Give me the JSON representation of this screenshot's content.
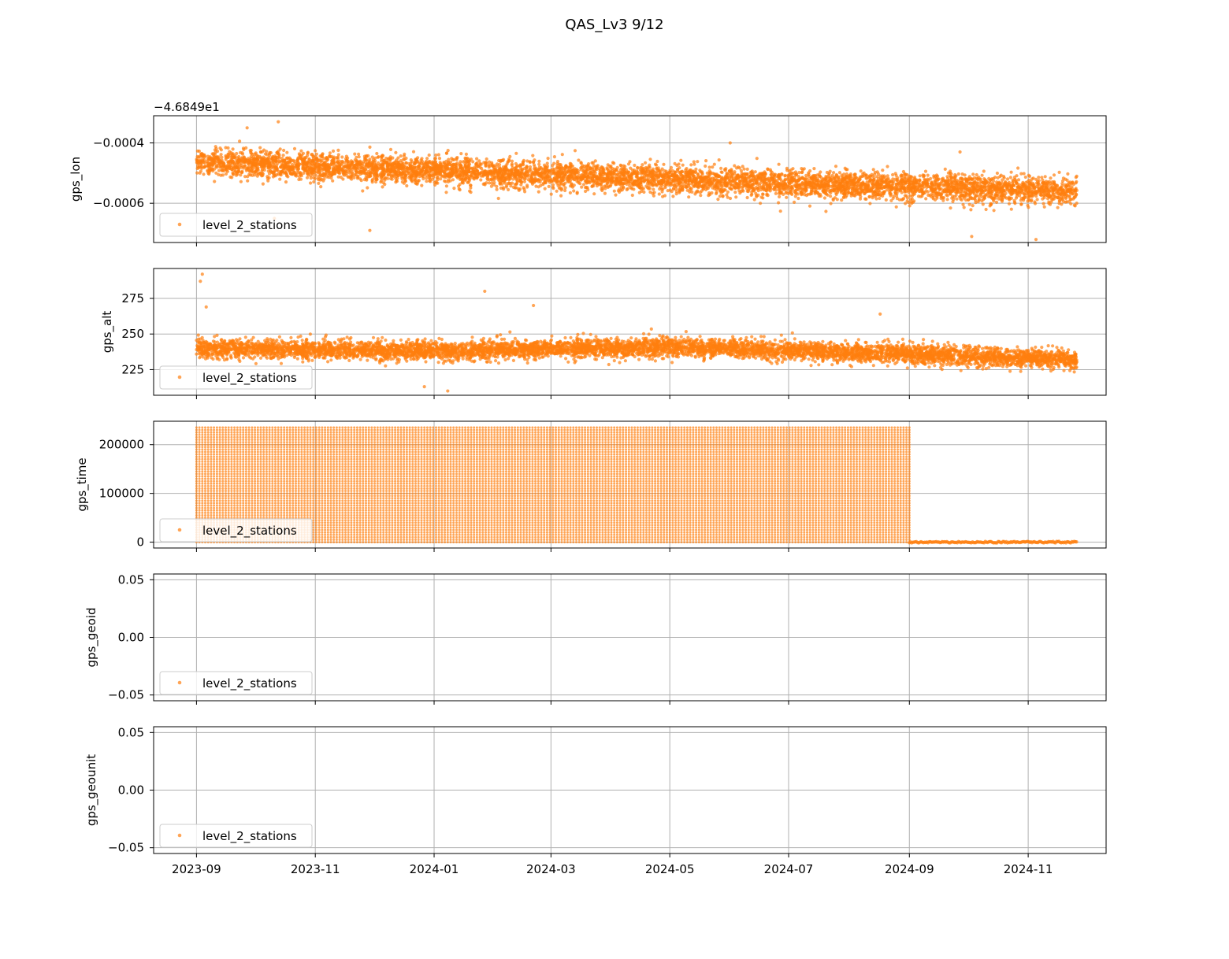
{
  "figure": {
    "title": "QAS_Lv3 9/12",
    "x_tick_labels": [
      "2023-09",
      "2023-11",
      "2024-01",
      "2024-03",
      "2024-05",
      "2024-07",
      "2024-09",
      "2024-11"
    ],
    "x_tick_dates": [
      "2023-09-01",
      "2023-11-01",
      "2024-01-01",
      "2024-03-01",
      "2024-05-01",
      "2024-07-01",
      "2024-09-01",
      "2024-11-01"
    ],
    "data_start": "2023-09-01",
    "data_end": "2024-11-26",
    "xlim": [
      "2023-08-10",
      "2024-12-11"
    ],
    "series_color": "#ff7f0e",
    "grid": true,
    "shared_x": true
  },
  "chart_data": [
    {
      "type": "scatter",
      "ylabel": "gps_lon",
      "offset_text": "−4.6849e1",
      "ylim": [
        -0.00073,
        -0.00031
      ],
      "y_ticks": [
        -0.0004,
        -0.0006
      ],
      "y_tick_labels": [
        "−0.0004",
        "−0.0006"
      ],
      "legend": {
        "label": "level_2_stations",
        "location": "lower left"
      },
      "series": [
        {
          "name": "level_2_stations",
          "trend": [
            [
              "2023-09-01",
              -0.000465
            ],
            [
              "2024-03-01",
              -0.000505
            ],
            [
              "2024-07-01",
              -0.000535
            ],
            [
              "2024-11-26",
              -0.00056
            ]
          ],
          "spread": 4e-05,
          "outliers": [
            [
              "2023-09-27",
              -0.00035
            ],
            [
              "2023-10-11",
              -0.00065
            ],
            [
              "2023-11-29",
              -0.00069
            ],
            [
              "2023-10-13",
              -0.00033
            ],
            [
              "2024-06-01",
              -0.0004
            ],
            [
              "2024-10-03",
              -0.00071
            ],
            [
              "2024-11-05",
              -0.00072
            ],
            [
              "2024-09-27",
              -0.00043
            ]
          ]
        }
      ]
    },
    {
      "type": "scatter",
      "ylabel": "gps_alt",
      "ylim": [
        207,
        296
      ],
      "y_ticks": [
        225,
        250,
        275
      ],
      "y_tick_labels": [
        "225",
        "250",
        "275"
      ],
      "legend": {
        "label": "level_2_stations",
        "location": "lower left"
      },
      "series": [
        {
          "name": "level_2_stations",
          "trend": [
            [
              "2023-09-01",
              240
            ],
            [
              "2024-01-01",
              238
            ],
            [
              "2024-05-01",
              241
            ],
            [
              "2024-08-01",
              237
            ],
            [
              "2024-11-26",
              232
            ]
          ],
          "spread": 6,
          "outliers": [
            [
              "2023-09-04",
              292
            ],
            [
              "2023-09-03",
              287
            ],
            [
              "2023-09-06",
              269
            ],
            [
              "2024-01-27",
              280
            ],
            [
              "2024-02-21",
              270
            ],
            [
              "2023-12-27",
              213
            ],
            [
              "2024-01-08",
              210
            ],
            [
              "2024-08-17",
              264
            ]
          ]
        }
      ]
    },
    {
      "type": "scatter",
      "ylabel": "gps_time",
      "ylim": [
        -12000,
        248000
      ],
      "y_ticks": [
        0,
        100000,
        200000
      ],
      "y_tick_labels": [
        "0",
        "100000",
        "200000"
      ],
      "legend": {
        "label": "level_2_stations",
        "location": "lower left"
      },
      "series": [
        {
          "name": "level_2_stations",
          "description_values": {
            "banded_max": 235000,
            "band_step": 5000,
            "banded_until": "2024-09-01",
            "after_value": 0
          },
          "after_until": "2024-11-26"
        }
      ]
    },
    {
      "type": "scatter",
      "ylabel": "gps_geoid",
      "ylim": [
        -0.055,
        0.055
      ],
      "y_ticks": [
        -0.05,
        0.0,
        0.05
      ],
      "y_tick_labels": [
        "−0.05",
        "0.00",
        "0.05"
      ],
      "legend": {
        "label": "level_2_stations",
        "location": "lower left"
      },
      "series": [
        {
          "name": "level_2_stations",
          "points": []
        }
      ]
    },
    {
      "type": "scatter",
      "ylabel": "gps_geounit",
      "ylim": [
        -0.055,
        0.055
      ],
      "y_ticks": [
        -0.05,
        0.0,
        0.05
      ],
      "y_tick_labels": [
        "−0.05",
        "0.00",
        "0.05"
      ],
      "legend": {
        "label": "level_2_stations",
        "location": "lower left"
      },
      "series": [
        {
          "name": "level_2_stations",
          "points": []
        }
      ]
    }
  ]
}
